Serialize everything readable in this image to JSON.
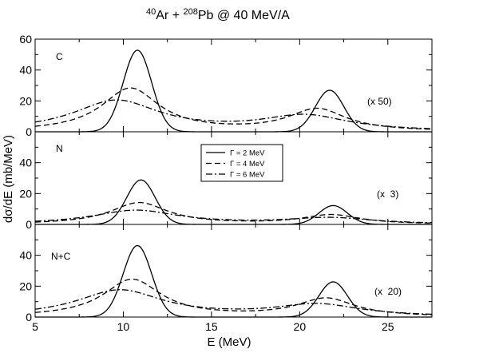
{
  "title": {
    "projectile_mass": "40",
    "projectile": "Ar",
    "plus": " + ",
    "target_mass": "208",
    "target": "Pb",
    "rest": " @ 40 MeV/A"
  },
  "chart_data": {
    "type": "line",
    "xlabel": "E (MeV)",
    "ylabel": "dσ/dE (mb/MeV)",
    "xlim": [
      5,
      27.5
    ],
    "xticks": [
      5,
      10,
      15,
      20,
      25
    ],
    "legend": {
      "position": "center-top of middle panel",
      "entries": [
        {
          "label": "Γ = 2 MeV",
          "style": "solid"
        },
        {
          "label": "Γ = 4 MeV",
          "style": "dashed"
        },
        {
          "label": "Γ = 6 MeV",
          "style": "dash-dot"
        }
      ]
    },
    "panels": [
      {
        "label": "C",
        "scale_note": "(x 50)",
        "ylim": [
          0,
          60
        ],
        "yticks": [
          0,
          20,
          40,
          60
        ],
        "series": [
          {
            "name": "Γ = 2 MeV",
            "style": "solid",
            "peaks": [
              {
                "center": 10.8,
                "width": 2,
                "height": 52.8
              },
              {
                "center": 21.7,
                "width": 2,
                "height": 26.9
              }
            ]
          },
          {
            "name": "Γ = 4 MeV",
            "style": "dashed",
            "peaks": [
              {
                "center": 10.4,
                "width": 4,
                "height": 27.9
              },
              {
                "center": 21.0,
                "width": 4,
                "height": 14.3
              }
            ]
          },
          {
            "name": "Γ = 6 MeV",
            "style": "dash-dot",
            "peaks": [
              {
                "center": 9.6,
                "width": 6,
                "height": 19.9
              },
              {
                "center": 20.3,
                "width": 6,
                "height": 9.9
              }
            ]
          }
        ]
      },
      {
        "label": "N",
        "scale_note": "(x  3)",
        "ylim": [
          0,
          60
        ],
        "yticks": [
          0,
          20,
          40
        ],
        "series": [
          {
            "name": "Γ = 2 MeV",
            "style": "solid",
            "peaks": [
              {
                "center": 11.0,
                "width": 2,
                "height": 28.8
              },
              {
                "center": 21.9,
                "width": 2,
                "height": 12.2
              }
            ]
          },
          {
            "name": "Γ = 4 MeV",
            "style": "dashed",
            "peaks": [
              {
                "center": 10.9,
                "width": 4,
                "height": 14.0
              },
              {
                "center": 21.8,
                "width": 4,
                "height": 6.0
              }
            ]
          },
          {
            "name": "Γ = 6 MeV",
            "style": "dash-dot",
            "peaks": [
              {
                "center": 10.7,
                "width": 6,
                "height": 9.0
              },
              {
                "center": 21.7,
                "width": 6,
                "height": 4.0
              }
            ]
          }
        ]
      },
      {
        "label": "N+C",
        "scale_note": "(x  20)",
        "ylim": [
          0,
          60
        ],
        "yticks": [
          0,
          20,
          40
        ],
        "series": [
          {
            "name": "Γ = 2 MeV",
            "style": "solid",
            "peaks": [
              {
                "center": 10.8,
                "width": 2,
                "height": 46.3
              },
              {
                "center": 21.9,
                "width": 2,
                "height": 22.8
              }
            ]
          },
          {
            "name": "Γ = 4 MeV",
            "style": "dashed",
            "peaks": [
              {
                "center": 10.5,
                "width": 4,
                "height": 24.2
              },
              {
                "center": 21.5,
                "width": 4,
                "height": 11.7
              }
            ]
          },
          {
            "name": "Γ = 6 MeV",
            "style": "dash-dot",
            "peaks": [
              {
                "center": 9.8,
                "width": 6,
                "height": 17.2
              },
              {
                "center": 21.0,
                "width": 6,
                "height": 7.7
              }
            ]
          }
        ]
      }
    ]
  }
}
